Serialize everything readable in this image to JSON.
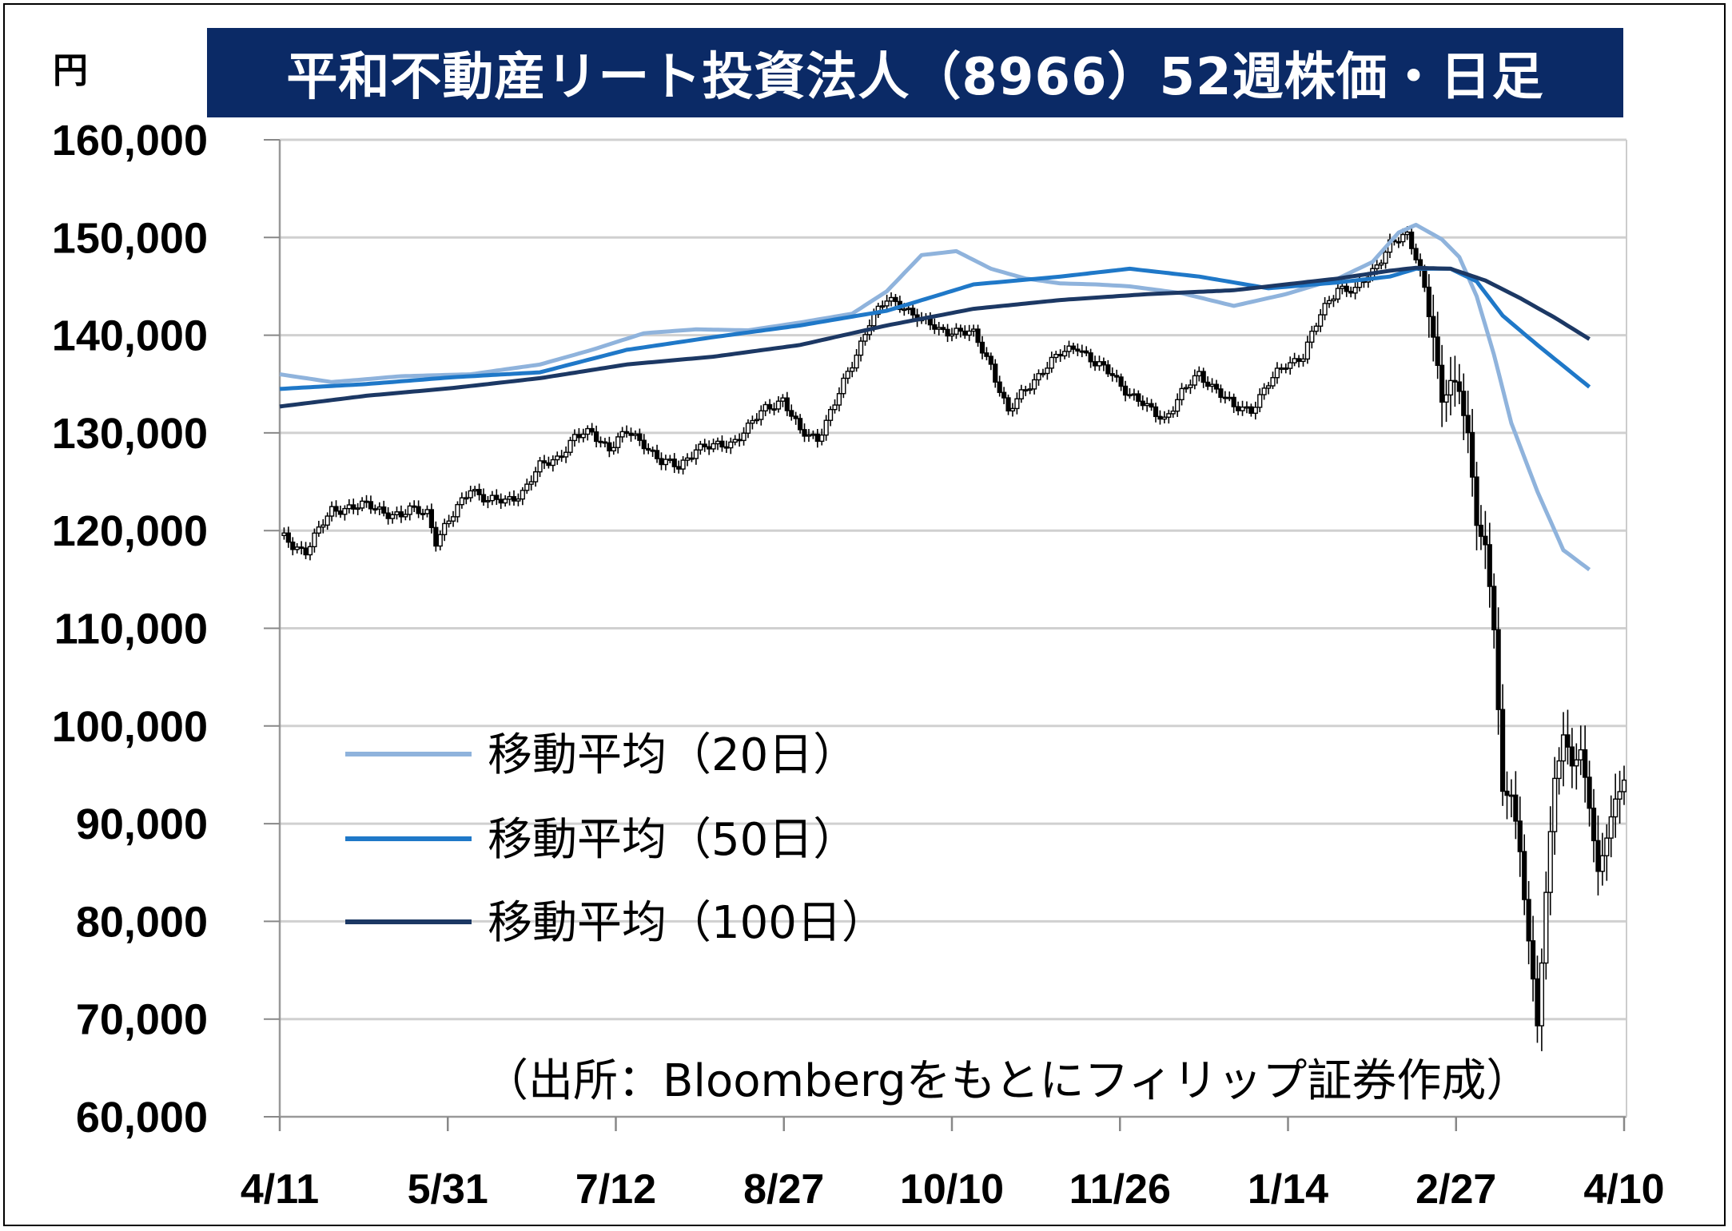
{
  "title": "平和不動産リート投資法人（8966）52週株価・日足",
  "unit": "円",
  "source": "（出所：Bloombergをもとにフィリップ証券作成）",
  "colors": {
    "title_bg": "#0b2a66",
    "ma20": "#8fb3dc",
    "ma50": "#1f78c8",
    "ma100": "#1c3864",
    "candle": "#000000",
    "grid": "#d0d0d0"
  },
  "chart_data": {
    "type": "candlestick",
    "ylim": [
      60000,
      160000
    ],
    "yticks": [
      60000,
      70000,
      80000,
      90000,
      100000,
      110000,
      120000,
      130000,
      140000,
      150000,
      160000
    ],
    "ytick_labels": [
      "60,000",
      "70,000",
      "80,000",
      "90,000",
      "100,000",
      "110,000",
      "120,000",
      "130,000",
      "140,000",
      "150,000",
      "160,000"
    ],
    "xtick_labels": [
      "4/11",
      "5/31",
      "7/12",
      "8/27",
      "10/10",
      "11/26",
      "1/14",
      "2/27",
      "4/10"
    ],
    "grid": "horizontal",
    "legend_position": "left-lower",
    "legend": [
      "移動平均（20日）",
      "移動平均（50日）",
      "移動平均（100日）"
    ],
    "price_anchors": [
      [
        0,
        119500
      ],
      [
        3,
        118500
      ],
      [
        6,
        118000
      ],
      [
        9,
        120000
      ],
      [
        12,
        122000
      ],
      [
        16,
        122500
      ],
      [
        20,
        122500
      ],
      [
        24,
        122000
      ],
      [
        28,
        121500
      ],
      [
        30,
        122000
      ],
      [
        34,
        122000
      ],
      [
        36,
        119000
      ],
      [
        40,
        121500
      ],
      [
        44,
        124500
      ],
      [
        48,
        123000
      ],
      [
        52,
        123000
      ],
      [
        56,
        124000
      ],
      [
        60,
        126500
      ],
      [
        64,
        127500
      ],
      [
        68,
        129500
      ],
      [
        72,
        130000
      ],
      [
        76,
        128500
      ],
      [
        80,
        130000
      ],
      [
        84,
        129000
      ],
      [
        88,
        127000
      ],
      [
        92,
        126500
      ],
      [
        96,
        128500
      ],
      [
        100,
        128500
      ],
      [
        104,
        129000
      ],
      [
        108,
        130500
      ],
      [
        112,
        132500
      ],
      [
        116,
        133500
      ],
      [
        120,
        130000
      ],
      [
        124,
        129500
      ],
      [
        128,
        133000
      ],
      [
        132,
        137000
      ],
      [
        136,
        141500
      ],
      [
        140,
        143500
      ],
      [
        144,
        143000
      ],
      [
        148,
        141500
      ],
      [
        152,
        140500
      ],
      [
        156,
        140500
      ],
      [
        160,
        140000
      ],
      [
        164,
        137000
      ],
      [
        168,
        132000
      ],
      [
        172,
        134500
      ],
      [
        176,
        136500
      ],
      [
        180,
        138000
      ],
      [
        184,
        139000
      ],
      [
        188,
        137000
      ],
      [
        192,
        136000
      ],
      [
        196,
        134000
      ],
      [
        200,
        132500
      ],
      [
        204,
        131500
      ],
      [
        208,
        134000
      ],
      [
        212,
        136000
      ],
      [
        216,
        134500
      ],
      [
        220,
        132500
      ],
      [
        224,
        132500
      ],
      [
        228,
        135000
      ],
      [
        232,
        137000
      ],
      [
        236,
        138000
      ],
      [
        240,
        142000
      ],
      [
        244,
        145000
      ],
      [
        248,
        144500
      ],
      [
        252,
        146500
      ],
      [
        256,
        149500
      ],
      [
        260,
        150000
      ],
      [
        262,
        148000
      ],
      [
        264,
        145000
      ],
      [
        266,
        140000
      ],
      [
        268,
        133000
      ],
      [
        270,
        135000
      ],
      [
        272,
        134500
      ],
      [
        274,
        130000
      ],
      [
        276,
        121000
      ],
      [
        278,
        118000
      ],
      [
        280,
        110000
      ],
      [
        282,
        93000
      ],
      [
        284,
        93500
      ],
      [
        286,
        87000
      ],
      [
        288,
        78000
      ],
      [
        290,
        69000
      ],
      [
        292,
        83000
      ],
      [
        294,
        95000
      ],
      [
        296,
        99000
      ],
      [
        298,
        96000
      ],
      [
        300,
        97000
      ],
      [
        302,
        92000
      ],
      [
        304,
        85000
      ],
      [
        306,
        89000
      ],
      [
        308,
        92000
      ],
      [
        310,
        94500
      ]
    ],
    "ma20_anchors": [
      [
        0,
        136000
      ],
      [
        12,
        135200
      ],
      [
        28,
        135800
      ],
      [
        44,
        136000
      ],
      [
        60,
        137000
      ],
      [
        72,
        138500
      ],
      [
        84,
        140200
      ],
      [
        96,
        140600
      ],
      [
        108,
        140500
      ],
      [
        120,
        141300
      ],
      [
        132,
        142200
      ],
      [
        140,
        144500
      ],
      [
        148,
        148200
      ],
      [
        156,
        148600
      ],
      [
        164,
        146800
      ],
      [
        172,
        145800
      ],
      [
        180,
        145300
      ],
      [
        188,
        145200
      ],
      [
        196,
        145000
      ],
      [
        208,
        144300
      ],
      [
        220,
        143000
      ],
      [
        232,
        144200
      ],
      [
        244,
        145800
      ],
      [
        252,
        147500
      ],
      [
        258,
        150500
      ],
      [
        262,
        151300
      ],
      [
        268,
        149800
      ],
      [
        272,
        148000
      ],
      [
        276,
        144000
      ],
      [
        280,
        138000
      ],
      [
        284,
        131000
      ],
      [
        290,
        124000
      ],
      [
        296,
        118000
      ],
      [
        302,
        116000
      ]
    ],
    "ma50_anchors": [
      [
        0,
        134500
      ],
      [
        20,
        135000
      ],
      [
        40,
        135700
      ],
      [
        60,
        136200
      ],
      [
        80,
        138500
      ],
      [
        100,
        139800
      ],
      [
        120,
        141000
      ],
      [
        140,
        142500
      ],
      [
        160,
        145200
      ],
      [
        180,
        146000
      ],
      [
        196,
        146800
      ],
      [
        212,
        146000
      ],
      [
        228,
        144800
      ],
      [
        244,
        145400
      ],
      [
        256,
        146000
      ],
      [
        262,
        146800
      ],
      [
        270,
        146800
      ],
      [
        276,
        145500
      ],
      [
        282,
        142000
      ],
      [
        290,
        139000
      ],
      [
        302,
        134700
      ]
    ],
    "ma100_anchors": [
      [
        0,
        132700
      ],
      [
        20,
        133800
      ],
      [
        40,
        134600
      ],
      [
        60,
        135600
      ],
      [
        80,
        137000
      ],
      [
        100,
        137800
      ],
      [
        120,
        139000
      ],
      [
        140,
        141000
      ],
      [
        160,
        142700
      ],
      [
        180,
        143600
      ],
      [
        200,
        144200
      ],
      [
        220,
        144600
      ],
      [
        244,
        145800
      ],
      [
        256,
        146600
      ],
      [
        262,
        146900
      ],
      [
        270,
        146800
      ],
      [
        278,
        145600
      ],
      [
        286,
        143800
      ],
      [
        294,
        141800
      ],
      [
        302,
        139600
      ]
    ]
  }
}
